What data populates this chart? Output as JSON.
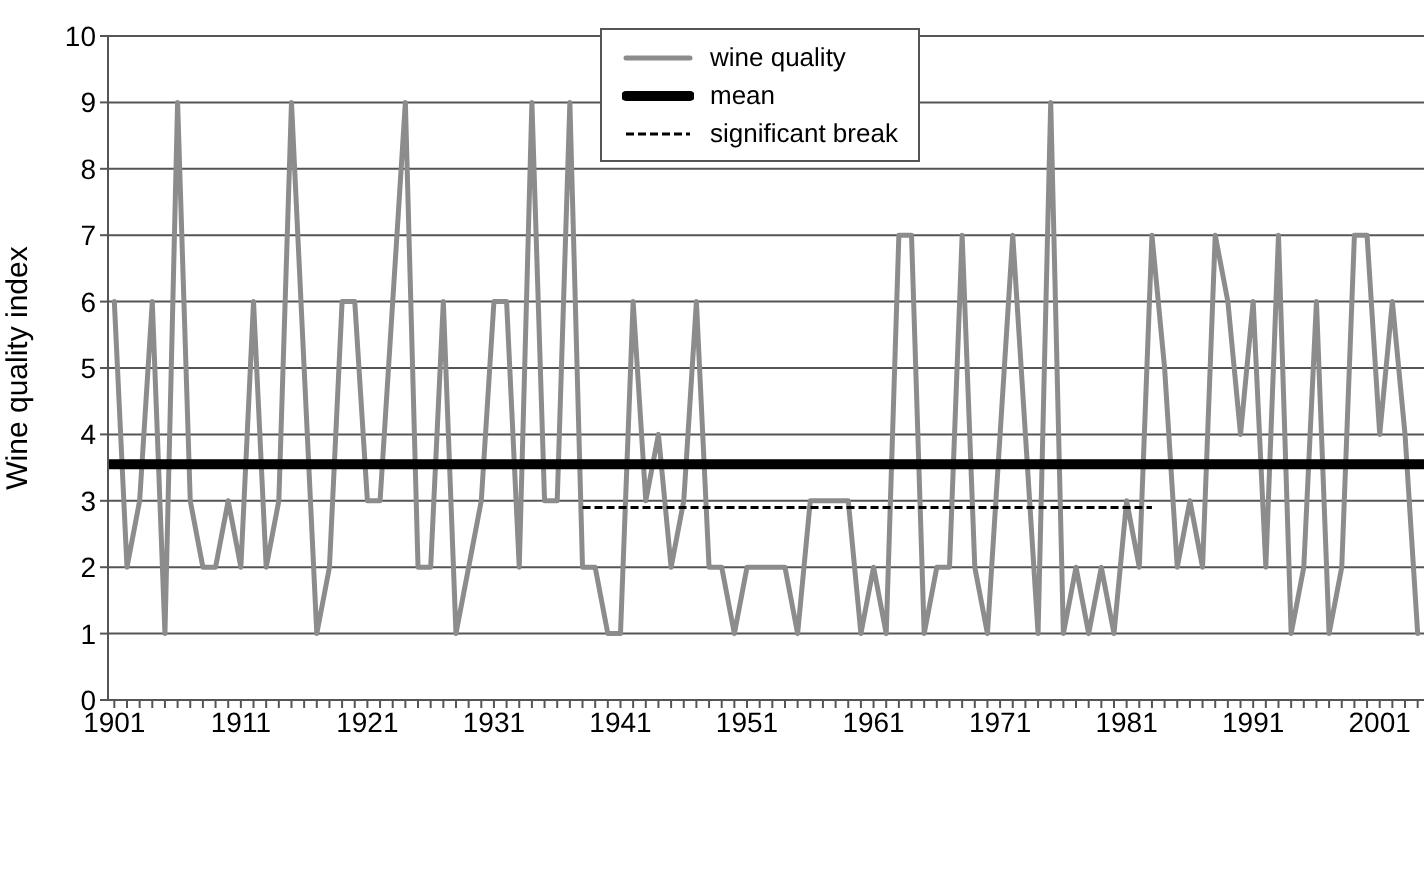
{
  "chart_data": {
    "type": "line",
    "ylabel": "Wine quality index",
    "xlim": [
      1900.5,
      2004.5
    ],
    "ylim": [
      0,
      10
    ],
    "yticks": [
      0,
      1,
      2,
      3,
      4,
      5,
      6,
      7,
      8,
      9,
      10
    ],
    "xticks": [
      1901,
      {
        "value": 1902,
        "label": null
      },
      {
        "value": 1903,
        "label": null
      },
      {
        "value": 1904,
        "label": null
      },
      {
        "value": 1905,
        "label": null
      },
      {
        "value": 1906,
        "label": null
      },
      {
        "value": 1907,
        "label": null
      },
      {
        "value": 1908,
        "label": null
      },
      {
        "value": 1909,
        "label": null
      },
      {
        "value": 1910,
        "label": null
      },
      1911,
      {
        "value": 1912,
        "label": null
      },
      {
        "value": 1913,
        "label": null
      },
      {
        "value": 1914,
        "label": null
      },
      {
        "value": 1915,
        "label": null
      },
      {
        "value": 1916,
        "label": null
      },
      {
        "value": 1917,
        "label": null
      },
      {
        "value": 1918,
        "label": null
      },
      {
        "value": 1919,
        "label": null
      },
      {
        "value": 1920,
        "label": null
      },
      1921,
      {
        "value": 1922,
        "label": null
      },
      {
        "value": 1923,
        "label": null
      },
      {
        "value": 1924,
        "label": null
      },
      {
        "value": 1925,
        "label": null
      },
      {
        "value": 1926,
        "label": null
      },
      {
        "value": 1927,
        "label": null
      },
      {
        "value": 1928,
        "label": null
      },
      {
        "value": 1929,
        "label": null
      },
      {
        "value": 1930,
        "label": null
      },
      1931,
      {
        "value": 1932,
        "label": null
      },
      {
        "value": 1933,
        "label": null
      },
      {
        "value": 1934,
        "label": null
      },
      {
        "value": 1935,
        "label": null
      },
      {
        "value": 1936,
        "label": null
      },
      {
        "value": 1937,
        "label": null
      },
      {
        "value": 1938,
        "label": null
      },
      {
        "value": 1939,
        "label": null
      },
      {
        "value": 1940,
        "label": null
      },
      1941,
      {
        "value": 1942,
        "label": null
      },
      {
        "value": 1943,
        "label": null
      },
      {
        "value": 1944,
        "label": null
      },
      {
        "value": 1945,
        "label": null
      },
      {
        "value": 1946,
        "label": null
      },
      {
        "value": 1947,
        "label": null
      },
      {
        "value": 1948,
        "label": null
      },
      {
        "value": 1949,
        "label": null
      },
      {
        "value": 1950,
        "label": null
      },
      1951,
      {
        "value": 1952,
        "label": null
      },
      {
        "value": 1953,
        "label": null
      },
      {
        "value": 1954,
        "label": null
      },
      {
        "value": 1955,
        "label": null
      },
      {
        "value": 1956,
        "label": null
      },
      {
        "value": 1957,
        "label": null
      },
      {
        "value": 1958,
        "label": null
      },
      {
        "value": 1959,
        "label": null
      },
      {
        "value": 1960,
        "label": null
      },
      1961,
      {
        "value": 1962,
        "label": null
      },
      {
        "value": 1963,
        "label": null
      },
      {
        "value": 1964,
        "label": null
      },
      {
        "value": 1965,
        "label": null
      },
      {
        "value": 1966,
        "label": null
      },
      {
        "value": 1967,
        "label": null
      },
      {
        "value": 1968,
        "label": null
      },
      {
        "value": 1969,
        "label": null
      },
      {
        "value": 1970,
        "label": null
      },
      1971,
      {
        "value": 1972,
        "label": null
      },
      {
        "value": 1973,
        "label": null
      },
      {
        "value": 1974,
        "label": null
      },
      {
        "value": 1975,
        "label": null
      },
      {
        "value": 1976,
        "label": null
      },
      {
        "value": 1977,
        "label": null
      },
      {
        "value": 1978,
        "label": null
      },
      {
        "value": 1979,
        "label": null
      },
      {
        "value": 1980,
        "label": null
      },
      1981,
      {
        "value": 1982,
        "label": null
      },
      {
        "value": 1983,
        "label": null
      },
      {
        "value": 1984,
        "label": null
      },
      {
        "value": 1985,
        "label": null
      },
      {
        "value": 1986,
        "label": null
      },
      {
        "value": 1987,
        "label": null
      },
      {
        "value": 1988,
        "label": null
      },
      {
        "value": 1989,
        "label": null
      },
      {
        "value": 1990,
        "label": null
      },
      1991,
      {
        "value": 1992,
        "label": null
      },
      {
        "value": 1993,
        "label": null
      },
      {
        "value": 1994,
        "label": null
      },
      {
        "value": 1995,
        "label": null
      },
      {
        "value": 1996,
        "label": null
      },
      {
        "value": 1997,
        "label": null
      },
      {
        "value": 1998,
        "label": null
      },
      {
        "value": 1999,
        "label": null
      },
      {
        "value": 2000,
        "label": null
      },
      2001,
      {
        "value": 2002,
        "label": null
      },
      {
        "value": 2003,
        "label": null
      },
      {
        "value": 2004,
        "label": null
      }
    ],
    "grid": "y",
    "legend": "top",
    "marker": "none",
    "series": [
      {
        "name": "wine quality",
        "color": "#8c8c8c",
        "line_style": "solid",
        "x": [
          1901,
          1902,
          1903,
          1904,
          1905,
          1906,
          1907,
          1908,
          1909,
          1910,
          1911,
          1912,
          1913,
          1914,
          1915,
          1916,
          1917,
          1918,
          1919,
          1920,
          1921,
          1922,
          1923,
          1924,
          1925,
          1926,
          1927,
          1928,
          1929,
          1930,
          1931,
          1932,
          1933,
          1934,
          1935,
          1936,
          1937,
          1938,
          1939,
          1940,
          1941,
          1942,
          1943,
          1944,
          1945,
          1946,
          1947,
          1948,
          1949,
          1950,
          1951,
          1952,
          1953,
          1954,
          1955,
          1956,
          1957,
          1958,
          1959,
          1960,
          1961,
          1962,
          1963,
          1964,
          1965,
          1966,
          1967,
          1968,
          1969,
          1970,
          1971,
          1972,
          1973,
          1974,
          1975,
          1976,
          1977,
          1978,
          1979,
          1980,
          1981,
          1982,
          1983,
          1984,
          1985,
          1986,
          1987,
          1988,
          1989,
          1990,
          1991,
          1992,
          1993,
          1994,
          1995,
          1996,
          1997,
          1998,
          1999,
          2000,
          2001,
          2002,
          2003,
          2004
        ],
        "values": [
          6,
          2,
          3,
          6,
          1,
          9,
          3,
          2,
          2,
          3,
          2,
          6,
          2,
          3,
          9,
          5,
          1,
          2,
          6,
          6,
          3,
          3,
          6,
          9,
          2,
          2,
          6,
          1,
          2,
          3,
          6,
          6,
          2,
          9,
          3,
          3,
          9,
          2,
          2,
          1,
          1,
          6,
          3,
          4,
          2,
          3,
          6,
          2,
          2,
          1,
          2,
          2,
          2,
          2,
          1,
          3,
          3,
          3,
          3,
          1,
          2,
          1,
          7,
          7,
          1,
          2,
          2,
          7,
          2,
          1,
          4,
          7,
          4,
          1,
          9,
          1,
          2,
          1,
          2,
          1,
          3,
          2,
          7,
          5,
          2,
          3,
          2,
          7,
          6,
          4,
          6,
          2,
          7,
          1,
          2,
          6,
          1,
          2,
          7,
          7,
          4,
          6,
          4,
          1
        ]
      },
      {
        "name": "mean",
        "color": "#000000",
        "line_style": "solid",
        "x": [
          1900.5,
          2004.5
        ],
        "values": [
          3.55,
          3.55
        ]
      },
      {
        "name": "significant break",
        "color": "#000000",
        "line_style": "dashed",
        "x": [
          1938,
          1983
        ],
        "values": [
          2.9,
          2.9
        ]
      }
    ]
  }
}
